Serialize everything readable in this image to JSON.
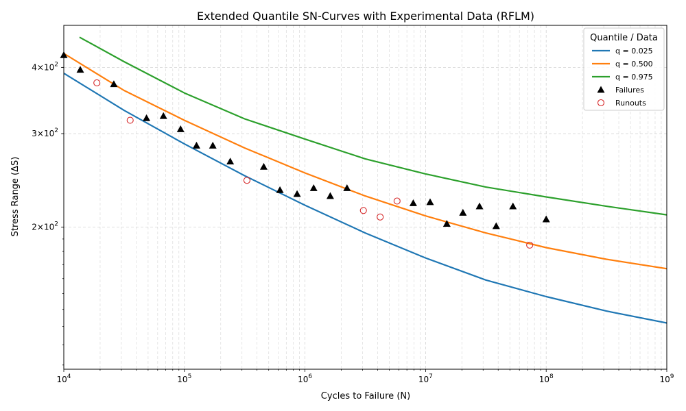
{
  "chart_data": {
    "type": "line",
    "title": "Extended Quantile SN-Curves with Experimental Data (RFLM)",
    "xlabel": "Cycles to Failure (N)",
    "ylabel": "Stress Range (ΔS)",
    "xscale": "log",
    "yscale": "log",
    "xlim": [
      10000,
      1000000000
    ],
    "ylim": [
      108,
      480
    ],
    "grid": true,
    "x_ticks": [
      {
        "value": 10000,
        "base": "10",
        "exp": "4"
      },
      {
        "value": 100000,
        "base": "10",
        "exp": "5"
      },
      {
        "value": 1000000,
        "base": "10",
        "exp": "6"
      },
      {
        "value": 10000000,
        "base": "10",
        "exp": "7"
      },
      {
        "value": 100000000,
        "base": "10",
        "exp": "8"
      },
      {
        "value": 1000000000,
        "base": "10",
        "exp": "9"
      }
    ],
    "y_ticks": [
      {
        "value": 200,
        "mant": "2",
        "base": "×10",
        "exp": "2"
      },
      {
        "value": 300,
        "mant": "3",
        "base": "×10",
        "exp": "2"
      },
      {
        "value": 400,
        "mant": "4",
        "base": "×10",
        "exp": "2"
      }
    ],
    "legend": {
      "title": "Quantile / Data",
      "placement": "top-right",
      "entries": [
        "q = 0.025",
        "q = 0.500",
        "q = 0.975",
        "Failures",
        "Runouts"
      ]
    },
    "series": [
      {
        "name": "q = 0.025",
        "color": "#1f77b4",
        "points": [
          [
            10000,
            390
          ],
          [
            31600,
            332
          ],
          [
            100000,
            287
          ],
          [
            316000,
            250
          ],
          [
            1000000,
            220
          ],
          [
            3160000,
            195
          ],
          [
            10000000,
            175
          ],
          [
            31600000,
            159
          ],
          [
            100000000,
            148
          ],
          [
            316000000,
            139
          ],
          [
            1000000000,
            132
          ]
        ]
      },
      {
        "name": "q = 0.500",
        "color": "#ff7f0e",
        "points": [
          [
            10000,
            425
          ],
          [
            31600,
            362
          ],
          [
            100000,
            318
          ],
          [
            316000,
            282
          ],
          [
            1000000,
            253
          ],
          [
            3160000,
            229
          ],
          [
            10000000,
            210
          ],
          [
            31600000,
            195
          ],
          [
            100000000,
            183
          ],
          [
            316000000,
            174
          ],
          [
            1000000000,
            167
          ]
        ]
      },
      {
        "name": "q = 0.975",
        "color": "#2ca02c",
        "points": [
          [
            13500,
            456
          ],
          [
            31600,
            410
          ],
          [
            100000,
            358
          ],
          [
            316000,
            320
          ],
          [
            1000000,
            293
          ],
          [
            3160000,
            269
          ],
          [
            10000000,
            252
          ],
          [
            31600000,
            238
          ],
          [
            100000000,
            228
          ],
          [
            316000000,
            219
          ],
          [
            1000000000,
            211
          ]
        ]
      }
    ],
    "failures": {
      "name": "Failures",
      "color": "#000000",
      "points": [
        [
          10000,
          422
        ],
        [
          13700,
          396
        ],
        [
          26000,
          372
        ],
        [
          48500,
          321
        ],
        [
          67000,
          324
        ],
        [
          93000,
          306
        ],
        [
          126000,
          285
        ],
        [
          172000,
          285
        ],
        [
          240000,
          266
        ],
        [
          455000,
          260
        ],
        [
          620000,
          235
        ],
        [
          860000,
          231
        ],
        [
          1180000,
          237
        ],
        [
          1620000,
          229
        ],
        [
          2230000,
          237
        ],
        [
          7900000,
          222
        ],
        [
          10900000,
          223
        ],
        [
          15000000,
          203
        ],
        [
          20400000,
          213
        ],
        [
          28000000,
          219
        ],
        [
          38500000,
          201
        ],
        [
          53000000,
          219
        ],
        [
          100000000,
          207
        ]
      ]
    },
    "runouts": {
      "name": "Runouts",
      "color": "#d62728",
      "points": [
        [
          18800,
          374
        ],
        [
          35500,
          318
        ],
        [
          330000,
          245
        ],
        [
          3050000,
          215
        ],
        [
          4200000,
          209
        ],
        [
          5800000,
          224
        ],
        [
          73000000,
          185
        ]
      ]
    }
  }
}
